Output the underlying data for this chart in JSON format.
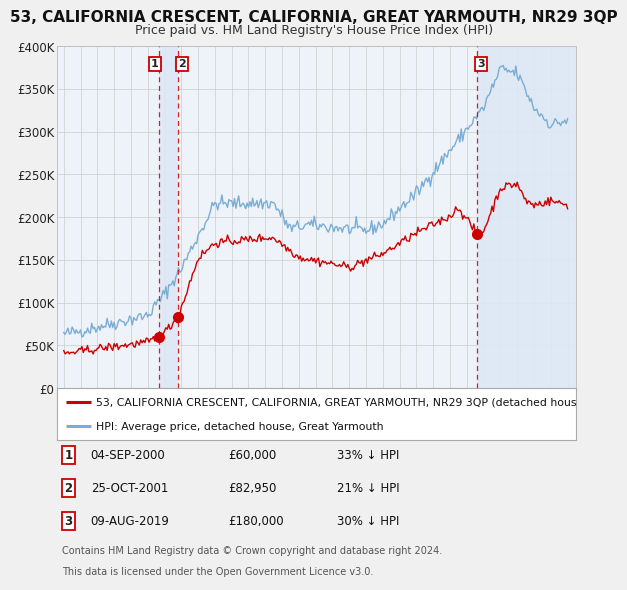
{
  "title": "53, CALIFORNIA CRESCENT, CALIFORNIA, GREAT YARMOUTH, NR29 3QP",
  "subtitle": "Price paid vs. HM Land Registry's House Price Index (HPI)",
  "ylim": [
    0,
    400000
  ],
  "yticks": [
    0,
    50000,
    100000,
    150000,
    200000,
    250000,
    300000,
    350000,
    400000
  ],
  "ytick_labels": [
    "£0",
    "£50K",
    "£100K",
    "£150K",
    "£200K",
    "£250K",
    "£300K",
    "£350K",
    "£400K"
  ],
  "title_fontsize": 11,
  "subtitle_fontsize": 9,
  "bg_color": "#f0f0f0",
  "plot_bg_color": "#eef3fa",
  "grid_color": "#cccccc",
  "red_color": "#cc0000",
  "blue_color": "#7aadd4",
  "shade_color": "#dde8f5",
  "transaction1_date": "04-SEP-2000",
  "transaction1_price": 60000,
  "transaction1_pct": "33% ↓ HPI",
  "transaction1_x": 2000.67,
  "transaction2_date": "25-OCT-2001",
  "transaction2_price": 82950,
  "transaction2_pct": "21% ↓ HPI",
  "transaction2_x": 2001.81,
  "transaction3_date": "09-AUG-2019",
  "transaction3_price": 180000,
  "transaction3_pct": "30% ↓ HPI",
  "transaction3_x": 2019.6,
  "legend_label_red": "53, CALIFORNIA CRESCENT, CALIFORNIA, GREAT YARMOUTH, NR29 3QP (detached hous",
  "legend_label_blue": "HPI: Average price, detached house, Great Yarmouth",
  "footer1": "Contains HM Land Registry data © Crown copyright and database right 2024.",
  "footer2": "This data is licensed under the Open Government Licence v3.0."
}
